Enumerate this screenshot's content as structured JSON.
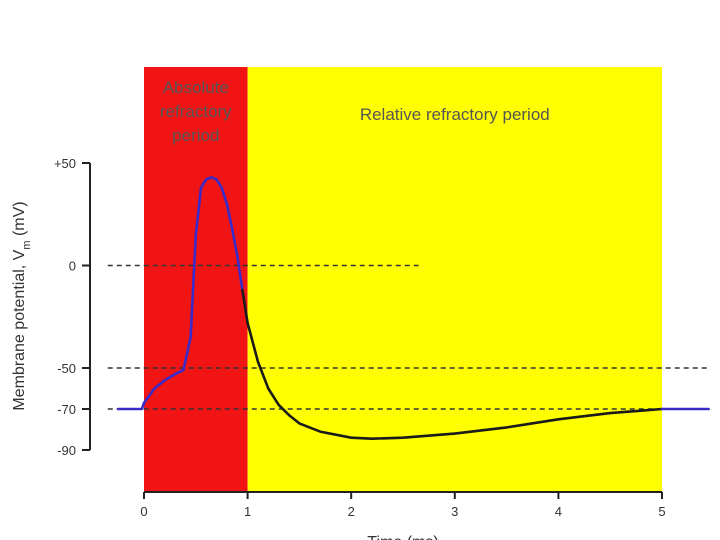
{
  "chart_data": {
    "type": "line",
    "title": "",
    "xlabel": "Time (ms)",
    "ylabel": "Membrane potential, V",
    "ylabel_subscript": "m",
    "ylabel_unit": " (mV)",
    "xlim": [
      0,
      5
    ],
    "ylim": [
      -90,
      50
    ],
    "x_ticks": [
      0,
      1,
      2,
      3,
      4,
      5
    ],
    "x_tick_labels": [
      "0",
      "1",
      "2",
      "3",
      "4",
      "5"
    ],
    "y_ticks": [
      50,
      0,
      -50,
      -70,
      -90
    ],
    "y_tick_labels": [
      "+50",
      "0",
      "-50",
      "-70",
      "-90"
    ],
    "regions": [
      {
        "name": "absolute",
        "label_lines": [
          "Absolute",
          "refractory",
          "period"
        ],
        "x_start": 0,
        "x_end": 1,
        "color": "#f01414"
      },
      {
        "name": "relative",
        "label_lines": [
          "Relative refractory period"
        ],
        "x_start": 1,
        "x_end": 5,
        "color": "#ffff00"
      }
    ],
    "reference_lines": [
      {
        "y": 0,
        "x_start": -0.35,
        "x_end": 2.65
      },
      {
        "y": -50,
        "x_start": -0.35,
        "x_end": 5.45
      },
      {
        "y": -70,
        "x_start": -0.35,
        "x_end": 5.45
      }
    ],
    "series": [
      {
        "color": "#3a2ac8",
        "x": [
          -0.25,
          -0.02,
          0.0,
          0.1,
          0.2,
          0.3,
          0.38,
          0.45,
          0.5,
          0.55,
          0.6,
          0.65,
          0.7,
          0.75,
          0.8,
          0.85,
          0.9,
          0.95
        ],
        "y": [
          -70,
          -70,
          -67,
          -60,
          -56,
          -53,
          -51,
          -35,
          15,
          38,
          42,
          43,
          42,
          38,
          30,
          18,
          5,
          -12
        ]
      },
      {
        "color": "#1a1a1a",
        "x": [
          0.95,
          1.0,
          1.1,
          1.2,
          1.3,
          1.4,
          1.5,
          1.7,
          2.0,
          2.2,
          2.5,
          3.0,
          3.5,
          4.0,
          4.5,
          5.0
        ],
        "y": [
          -12,
          -28,
          -47,
          -60,
          -68,
          -73,
          -77,
          -81,
          -84,
          -84.5,
          -84,
          -82,
          -79,
          -75,
          -72,
          -70
        ]
      },
      {
        "color": "#3a2ac8",
        "x": [
          5.0,
          5.45
        ],
        "y": [
          -70,
          -70
        ]
      }
    ]
  }
}
